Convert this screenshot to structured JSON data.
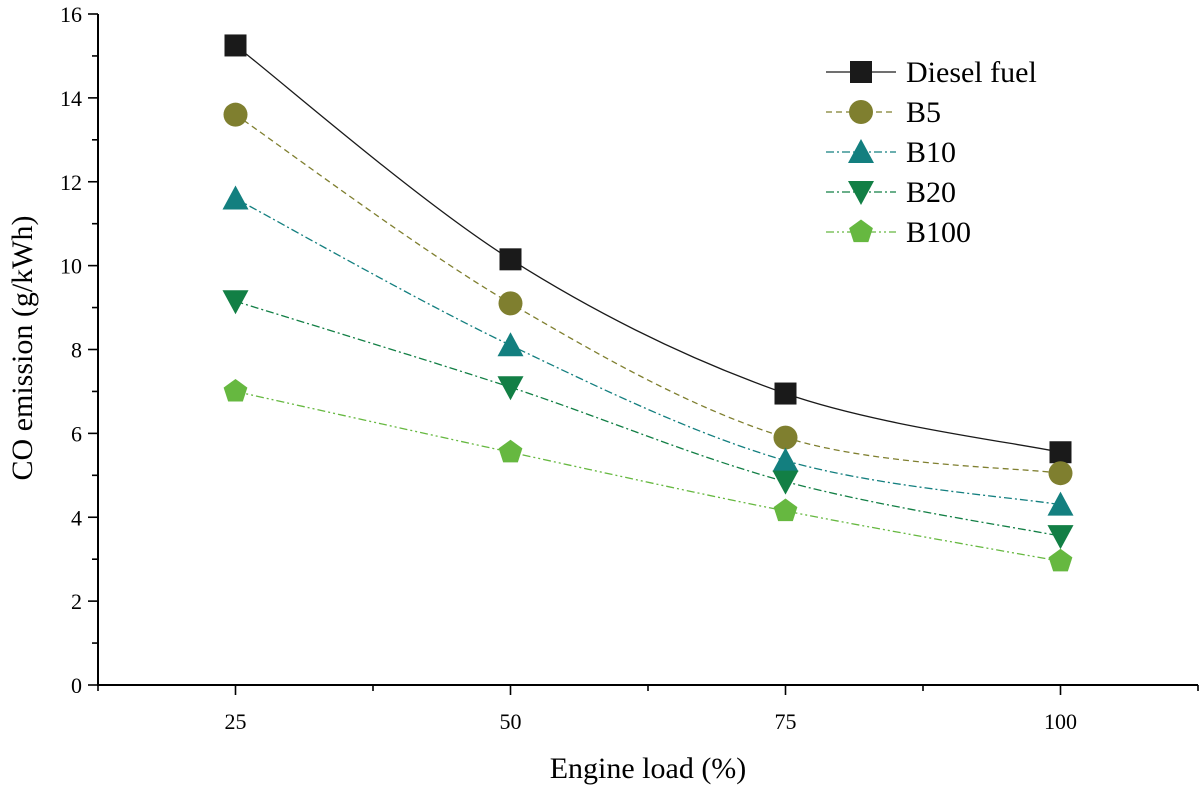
{
  "chart_data": {
    "type": "line",
    "title": "",
    "xlabel": "Engine load (%)",
    "ylabel": "CO emission (g/kWh)",
    "x": [
      25,
      50,
      75,
      100
    ],
    "xlim": [
      12.5,
      112.5
    ],
    "ylim": [
      0,
      16
    ],
    "xticks": [
      25,
      50,
      75,
      100
    ],
    "yticks": [
      0,
      2,
      4,
      6,
      8,
      10,
      12,
      14,
      16
    ],
    "grid": false,
    "legend_position": "top-right",
    "series": [
      {
        "name": "Diesel fuel",
        "values": [
          15.25,
          10.15,
          6.95,
          5.55
        ],
        "color": "#1a1a1a",
        "marker": "square",
        "line": "solid"
      },
      {
        "name": "B5",
        "values": [
          13.6,
          9.1,
          5.9,
          5.05
        ],
        "color": "#7f7f2f",
        "marker": "circle",
        "line": "dash"
      },
      {
        "name": "B10",
        "values": [
          11.6,
          8.1,
          5.35,
          4.3
        ],
        "color": "#137f7f",
        "marker": "triangle-up",
        "line": "dashdot"
      },
      {
        "name": "B20",
        "values": [
          9.15,
          7.1,
          4.85,
          3.55
        ],
        "color": "#127f45",
        "marker": "triangle-down",
        "line": "dashdot"
      },
      {
        "name": "B100",
        "values": [
          7.0,
          5.55,
          4.15,
          2.95
        ],
        "color": "#66b840",
        "marker": "pentagon",
        "line": "dashdotdot"
      }
    ]
  }
}
